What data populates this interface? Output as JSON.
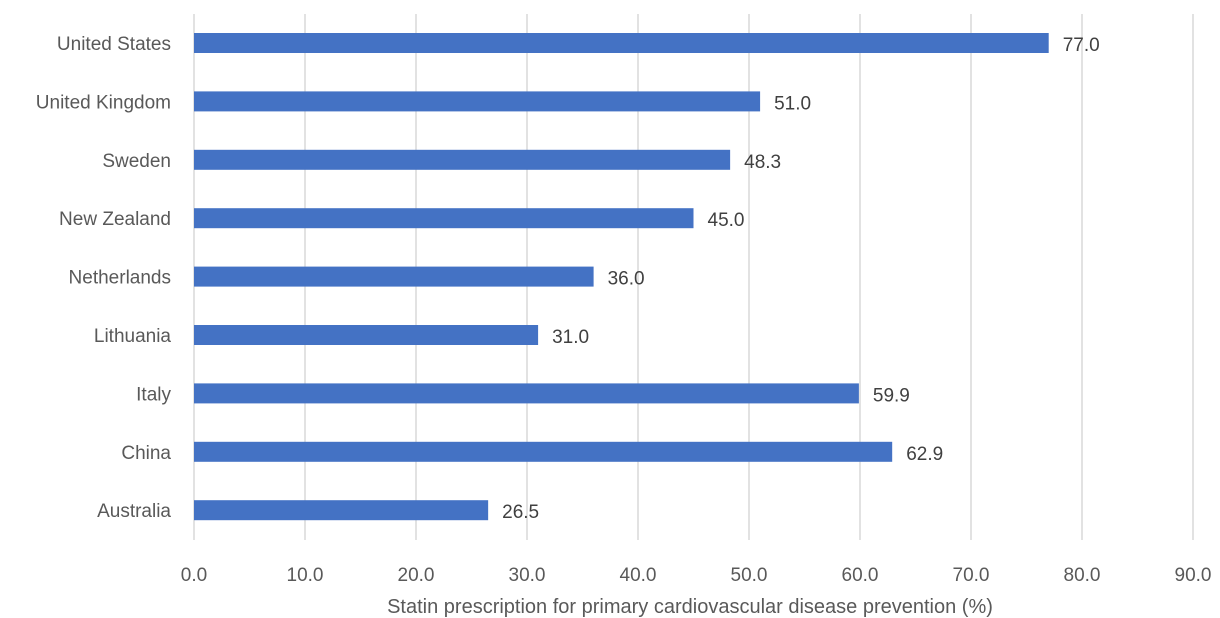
{
  "chart_data": {
    "type": "bar",
    "orientation": "horizontal",
    "categories": [
      "United States",
      "United Kingdom",
      "Sweden",
      "New Zealand",
      "Netherlands",
      "Lithuania",
      "Italy",
      "China",
      "Australia"
    ],
    "values": [
      77.0,
      51.0,
      48.3,
      45.0,
      36.0,
      31.0,
      59.9,
      62.9,
      26.5
    ],
    "value_labels": [
      "77.0",
      "51.0",
      "48.3",
      "45.0",
      "36.0",
      "31.0",
      "59.9",
      "62.9",
      "26.5"
    ],
    "xticks": [
      "0.0",
      "10.0",
      "20.0",
      "30.0",
      "40.0",
      "50.0",
      "60.0",
      "70.0",
      "80.0",
      "90.0"
    ],
    "xlim": [
      0,
      90
    ],
    "xlabel": "Statin prescription for primary cardiovascular disease prevention (%)",
    "ylabel": "",
    "title": "",
    "grid": "vertical",
    "legend": "none",
    "bar_color": "#4472c4",
    "grid_color": "#d9d9d9",
    "text_color": "#595959"
  }
}
